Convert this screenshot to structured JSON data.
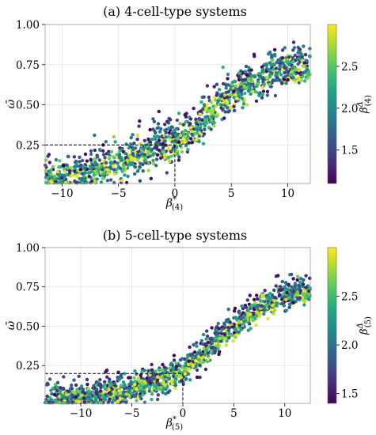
{
  "chart_data": [
    {
      "type": "scatter",
      "title": "(a) 4-cell-type systems",
      "xlabel": "β*(4)",
      "xlabel_parts": {
        "base": "β",
        "sup": "*",
        "sub": "(4)"
      },
      "ylabel": "ω̄",
      "xlim": [
        -11.5,
        12
      ],
      "ylim": [
        0.01,
        1.0
      ],
      "xticks": [
        -10,
        -5,
        0,
        5,
        10
      ],
      "xtick_labels": [
        "−10",
        "−5",
        "0",
        "5",
        "10"
      ],
      "yticks": [
        0.25,
        0.5,
        0.75,
        1.0
      ],
      "ytick_labels": [
        "0.25",
        "0.50",
        "0.75",
        "1.00"
      ],
      "grid": true,
      "colormap": "viridis",
      "colorbar": {
        "label": "β^Δ(4)",
        "label_parts": {
          "base": "β",
          "sup": "Δ",
          "sub": "(4)"
        },
        "range": [
          1.1,
          3.0
        ],
        "ticks": [
          1.5,
          2.0,
          2.5
        ],
        "tick_labels": [
          "1.5",
          "2.0",
          "2.5"
        ]
      },
      "reference_point": {
        "x": 0,
        "y": 0.25
      },
      "trend": [
        [
          -11.5,
          0.03
        ],
        [
          -8,
          0.08
        ],
        [
          -5,
          0.14
        ],
        [
          -2,
          0.22
        ],
        [
          0,
          0.28
        ],
        [
          2,
          0.37
        ],
        [
          4,
          0.52
        ],
        [
          6,
          0.62
        ],
        [
          8,
          0.69
        ],
        [
          10,
          0.73
        ],
        [
          12,
          0.75
        ]
      ],
      "spread": 0.07,
      "n_points": 1300,
      "seed": 4
    },
    {
      "type": "scatter",
      "title": "(b) 5-cell-type systems",
      "xlabel": "β*(5)",
      "xlabel_parts": {
        "base": "β",
        "sup": "*",
        "sub": "(5)"
      },
      "ylabel": "ω̄",
      "xlim": [
        -13.5,
        12.5
      ],
      "ylim": [
        0.01,
        1.0
      ],
      "xticks": [
        -10,
        -5,
        0,
        5,
        10
      ],
      "xtick_labels": [
        "−10",
        "−5",
        "0",
        "5",
        "10"
      ],
      "yticks": [
        0.25,
        0.5,
        0.75,
        1.0
      ],
      "ytick_labels": [
        "0.25",
        "0.50",
        "0.75",
        "1.00"
      ],
      "grid": true,
      "colormap": "viridis",
      "colorbar": {
        "label": "β^Δ(5)",
        "label_parts": {
          "base": "β",
          "sup": "Δ",
          "sub": "(5)"
        },
        "range": [
          1.4,
          3.0
        ],
        "ticks": [
          1.5,
          2.0,
          2.5
        ],
        "tick_labels": [
          "1.5",
          "2.0",
          "2.5"
        ]
      },
      "reference_point": {
        "x": 0,
        "y": 0.2
      },
      "trend": [
        [
          -13.5,
          0.02
        ],
        [
          -10,
          0.05
        ],
        [
          -6,
          0.09
        ],
        [
          -3,
          0.14
        ],
        [
          0,
          0.22
        ],
        [
          2,
          0.33
        ],
        [
          4,
          0.45
        ],
        [
          6,
          0.55
        ],
        [
          8,
          0.64
        ],
        [
          10,
          0.7
        ],
        [
          12.5,
          0.73
        ]
      ],
      "spread": 0.05,
      "n_points": 1400,
      "seed": 5
    }
  ]
}
